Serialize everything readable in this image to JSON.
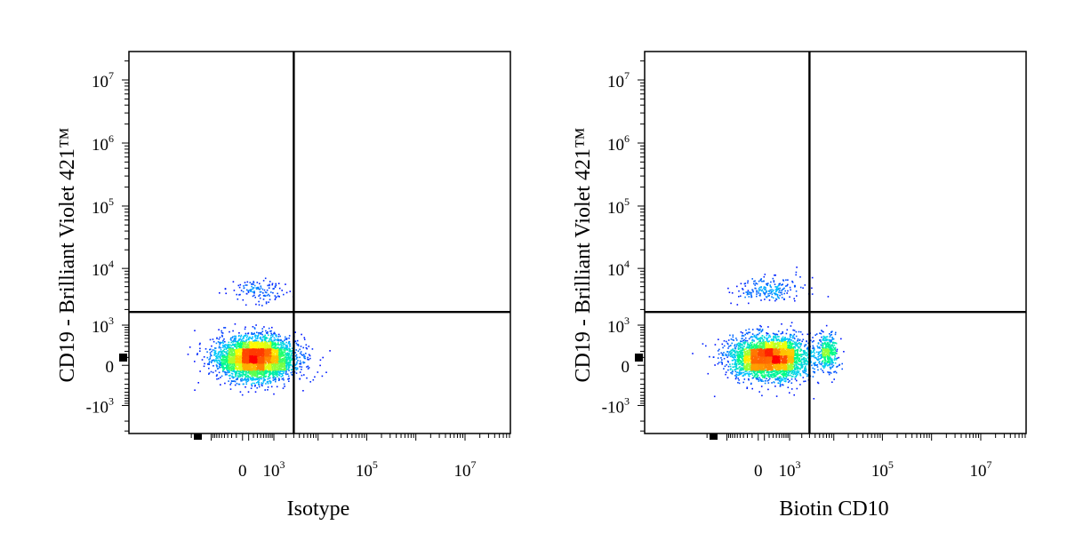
{
  "chart_data": [
    {
      "type": "scatter",
      "title": "",
      "xlabel": "Isotype",
      "ylabel": "CD19 - Brilliant Violet 421™",
      "axis_scale": "biexponential (log above 10^3, linear around 0)",
      "x_ticks": [
        {
          "base": "0",
          "exp": ""
        },
        {
          "base": "10",
          "exp": "3"
        },
        {
          "base": "10",
          "exp": "5"
        },
        {
          "base": "10",
          "exp": "7"
        }
      ],
      "y_ticks": [
        {
          "base": "10",
          "exp": "7"
        },
        {
          "base": "10",
          "exp": "6"
        },
        {
          "base": "10",
          "exp": "5"
        },
        {
          "base": "10",
          "exp": "4"
        },
        {
          "base": "10",
          "exp": "3"
        },
        {
          "base": "0",
          "exp": ""
        },
        {
          "base": "-10",
          "exp": "3"
        }
      ],
      "gate": {
        "x": 3000,
        "y": 1800
      },
      "populations": [
        {
          "center_x": 250,
          "center_y": 100,
          "spread_x_decades": 1.2,
          "spread_y_decades": 0.5,
          "share": 0.97,
          "label": "CD19- Isotype- (bottom-left)"
        },
        {
          "center_x": 300,
          "center_y": 4500,
          "spread_x_decades": 0.9,
          "spread_y_decades": 0.3,
          "share": 0.03,
          "label": "CD19+ Isotype- (top-left)"
        }
      ],
      "color_scale": [
        "#0000ff",
        "#00c8ff",
        "#00ff80",
        "#ffff00",
        "#ff8000",
        "#ff0000"
      ],
      "grid": false
    },
    {
      "type": "scatter",
      "title": "",
      "xlabel": "Biotin CD10",
      "ylabel": "CD19 - Brilliant Violet 421™",
      "axis_scale": "biexponential (log above 10^3, linear around 0)",
      "x_ticks": [
        {
          "base": "0",
          "exp": ""
        },
        {
          "base": "10",
          "exp": "3"
        },
        {
          "base": "10",
          "exp": "5"
        },
        {
          "base": "10",
          "exp": "7"
        }
      ],
      "y_ticks": [
        {
          "base": "10",
          "exp": "7"
        },
        {
          "base": "10",
          "exp": "6"
        },
        {
          "base": "10",
          "exp": "5"
        },
        {
          "base": "10",
          "exp": "4"
        },
        {
          "base": "10",
          "exp": "3"
        },
        {
          "base": "0",
          "exp": ""
        },
        {
          "base": "-10",
          "exp": "3"
        }
      ],
      "gate": {
        "x": 3000,
        "y": 1800
      },
      "populations": [
        {
          "center_x": 200,
          "center_y": 100,
          "spread_x_decades": 1.2,
          "spread_y_decades": 0.5,
          "share": 0.86,
          "label": "CD19- CD10- (bottom-left)"
        },
        {
          "center_x": 7000,
          "center_y": 200,
          "spread_x_decades": 0.35,
          "spread_y_decades": 0.45,
          "share": 0.09,
          "label": "CD19- CD10+ (bottom-right)"
        },
        {
          "center_x": 250,
          "center_y": 4500,
          "spread_x_decades": 1.0,
          "spread_y_decades": 0.3,
          "share": 0.05,
          "label": "CD19+ CD10- (top-left)"
        }
      ],
      "color_scale": [
        "#0000ff",
        "#00c8ff",
        "#00ff80",
        "#ffff00",
        "#ff8000",
        "#ff0000"
      ],
      "grid": false
    }
  ]
}
